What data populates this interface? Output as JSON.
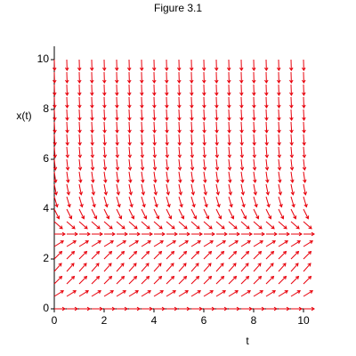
{
  "chart_data": {
    "type": "direction-field",
    "title": "Figure 3.1",
    "xlabel": "t",
    "ylabel": "x(t)",
    "t": [
      0,
      0.5,
      1,
      1.5,
      2,
      2.5,
      3,
      3.5,
      4,
      4.5,
      5,
      5.5,
      6,
      6.5,
      7,
      7.5,
      8,
      8.5,
      9,
      9.5,
      10
    ],
    "x": [
      0,
      0.5,
      1,
      1.5,
      2,
      2.5,
      3,
      3.5,
      4,
      4.5,
      5,
      5.5,
      6,
      6.5,
      7,
      7.5,
      8,
      8.5,
      9,
      9.5,
      10
    ],
    "slopes": [
      0,
      0.625,
      1,
      1.125,
      1,
      0.625,
      0,
      -0.875,
      -2,
      -3.375,
      -5,
      -6.875,
      -9,
      -11.375,
      -14,
      -16.875,
      -20,
      -23.375,
      -27,
      -30.875,
      -35
    ],
    "color": "#e8000b",
    "xlim": [
      0,
      10
    ],
    "ylim": [
      0,
      10
    ],
    "xticks": [
      0,
      2,
      4,
      6,
      8,
      10
    ],
    "yticks": [
      0,
      2,
      4,
      6,
      8,
      10
    ]
  }
}
